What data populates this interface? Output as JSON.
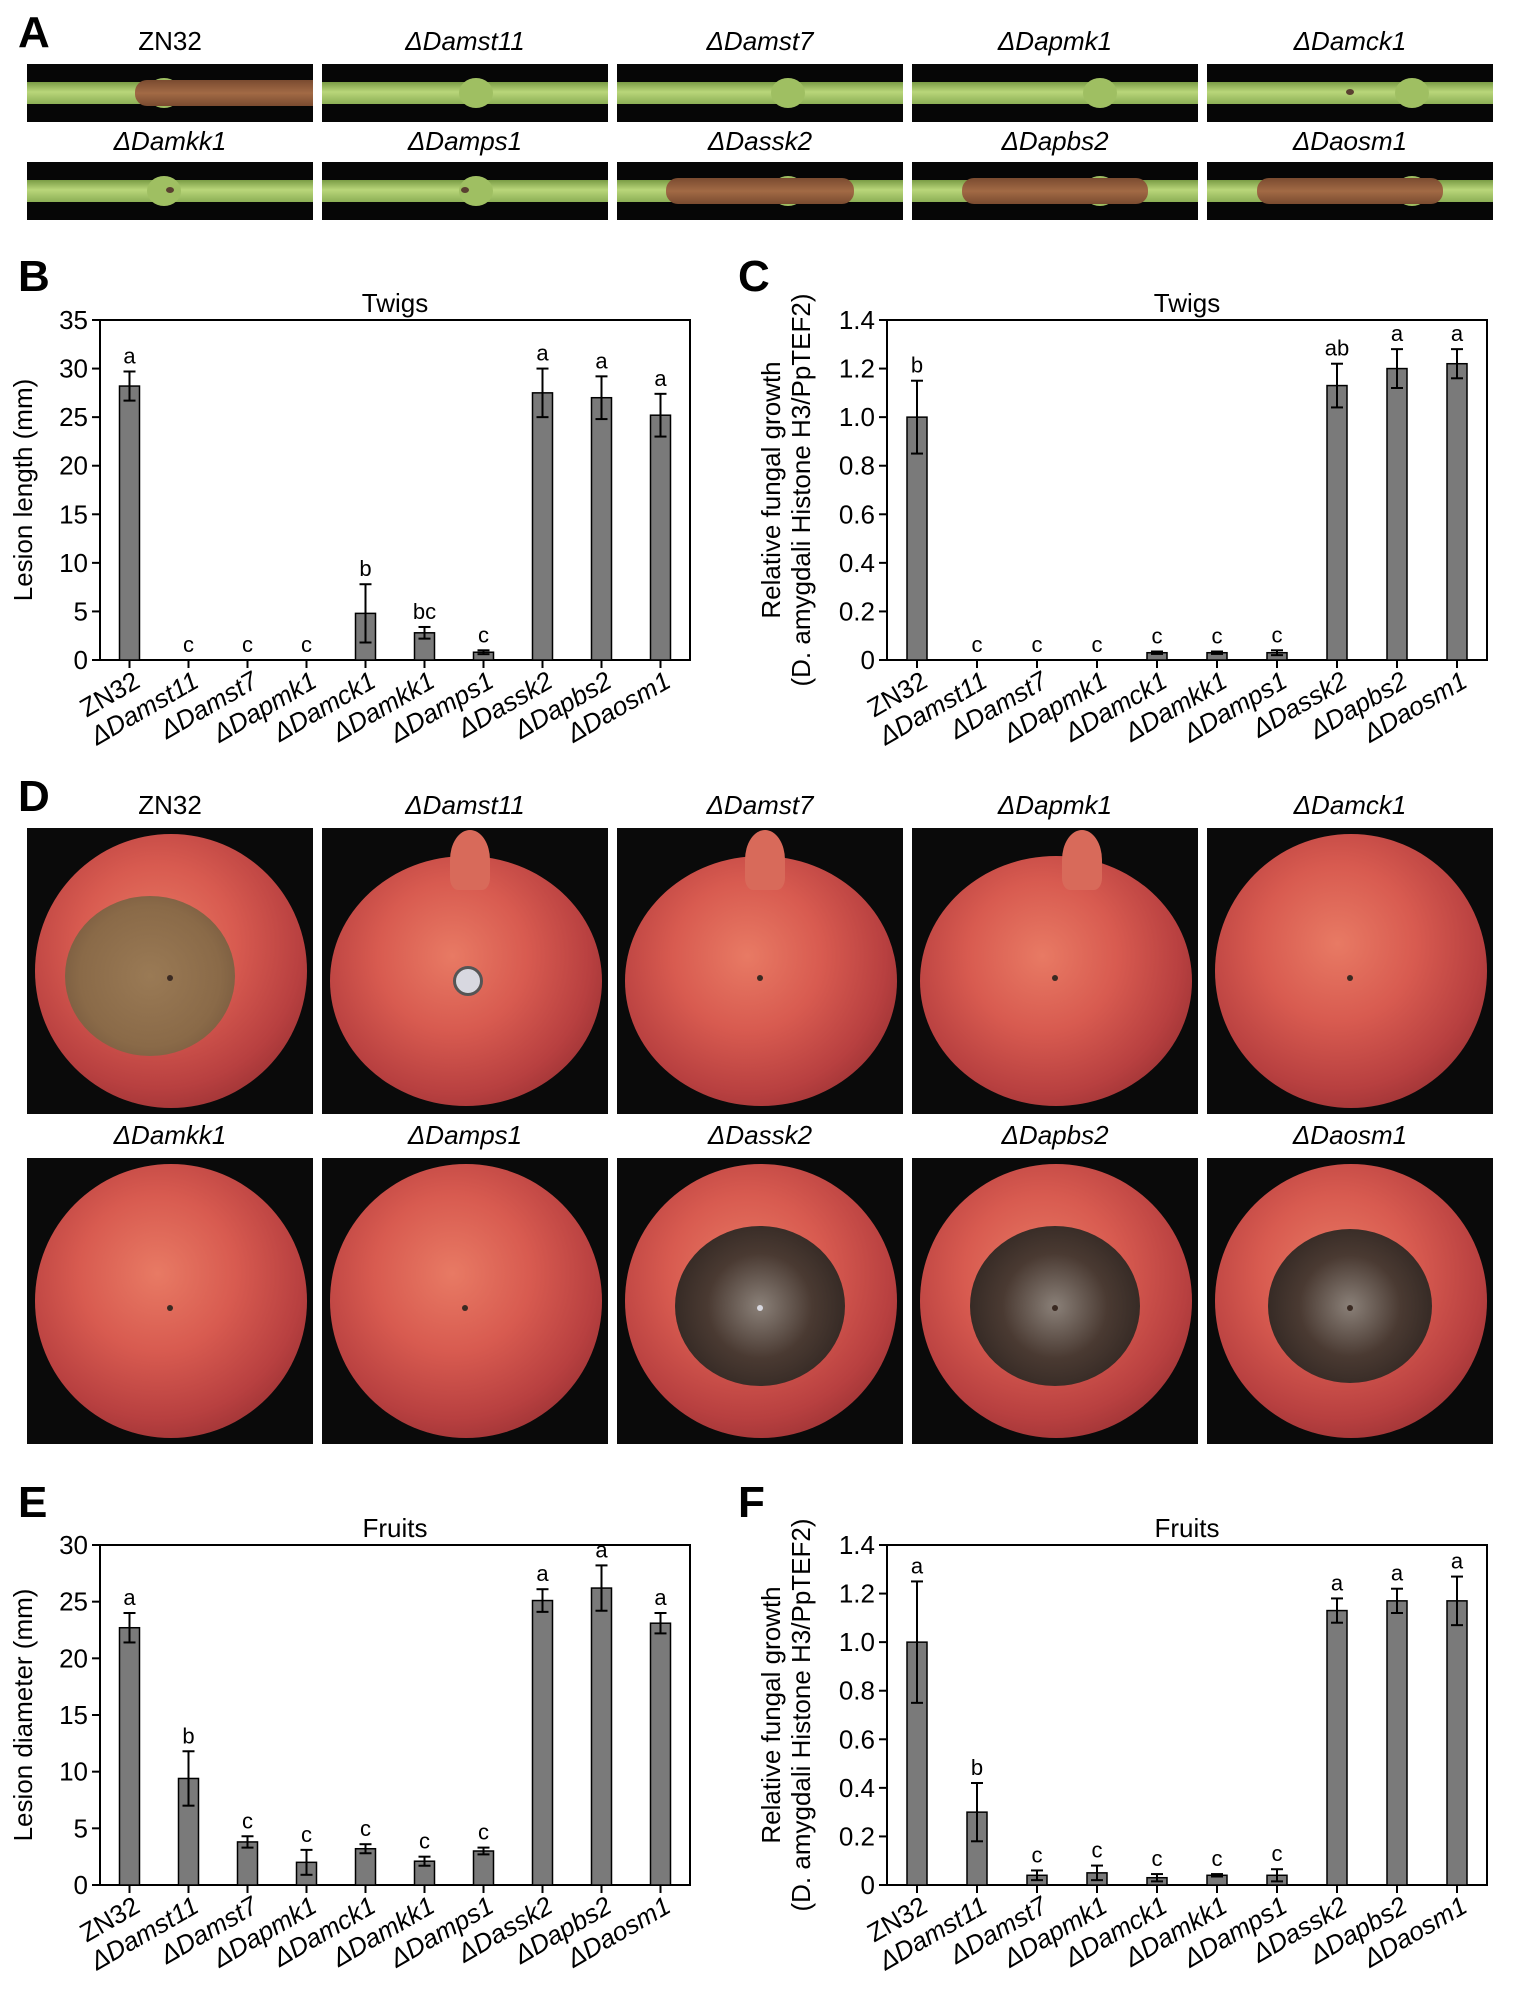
{
  "panels": {
    "A": "A",
    "B": "B",
    "C": "C",
    "D": "D",
    "E": "E",
    "F": "F"
  },
  "strains": [
    "ZN32",
    "ΔDamst11",
    "ΔDamst7",
    "ΔDapmk1",
    "ΔDamck1",
    "ΔDamkk1",
    "ΔDamps1",
    "ΔDassk2",
    "ΔDapbs2",
    "ΔDaosm1"
  ],
  "twig_photos": {
    "lesion_strength": [
      1.0,
      0.0,
      0.0,
      0.0,
      0.15,
      0.1,
      0.05,
      0.95,
      0.9,
      0.9
    ]
  },
  "fruit_photos": {
    "lesion_strength": [
      1.0,
      0.25,
      0.1,
      0.05,
      0.1,
      0.08,
      0.1,
      1.0,
      1.0,
      0.85
    ]
  },
  "colors": {
    "bar_fill": "#7a7a7a",
    "axis": "#000000",
    "twig_lesion": "#8a5535",
    "fruit_lesion": "#4a3a30"
  },
  "chart_data": [
    {
      "id": "B",
      "type": "bar",
      "title": "Twigs",
      "ylabel": "Lesion length (mm)",
      "ylabel2": "",
      "categories": [
        "ZN32",
        "ΔDamst11",
        "ΔDamst7",
        "ΔDapmk1",
        "ΔDamck1",
        "ΔDamkk1",
        "ΔDamps1",
        "ΔDassk2",
        "ΔDapbs2",
        "ΔDaosm1"
      ],
      "values": [
        28.2,
        0,
        0,
        0,
        4.8,
        2.8,
        0.8,
        27.5,
        27.0,
        25.2
      ],
      "errors": [
        1.5,
        0,
        0,
        0,
        3.0,
        0.6,
        0.2,
        2.5,
        2.2,
        2.2
      ],
      "letters": [
        "a",
        "c",
        "c",
        "c",
        "b",
        "bc",
        "c",
        "a",
        "a",
        "a"
      ],
      "ylim": [
        0,
        35
      ],
      "yticks": [
        "0",
        "5",
        "10",
        "15",
        "20",
        "25",
        "30",
        "35"
      ],
      "ytick_values": [
        0,
        5,
        10,
        15,
        20,
        25,
        30,
        35
      ]
    },
    {
      "id": "C",
      "type": "bar",
      "title": "Twigs",
      "ylabel": "Relative fungal growth",
      "ylabel2": "(D. amygdali Histone H3/PpTEF2)",
      "categories": [
        "ZN32",
        "ΔDamst11",
        "ΔDamst7",
        "ΔDapmk1",
        "ΔDamck1",
        "ΔDamkk1",
        "ΔDamps1",
        "ΔDassk2",
        "ΔDapbs2",
        "ΔDaosm1"
      ],
      "values": [
        1.0,
        0,
        0,
        0,
        0.03,
        0.03,
        0.03,
        1.13,
        1.2,
        1.22
      ],
      "errors": [
        0.15,
        0,
        0,
        0,
        0.005,
        0.005,
        0.01,
        0.09,
        0.08,
        0.06
      ],
      "letters": [
        "b",
        "c",
        "c",
        "c",
        "c",
        "c",
        "c",
        "ab",
        "a",
        "a"
      ],
      "ylim": [
        0,
        1.4
      ],
      "yticks": [
        "0",
        "0.2",
        "0.4",
        "0.6",
        "0.8",
        "1.0",
        "1.2",
        "1.4"
      ],
      "ytick_values": [
        0,
        0.2,
        0.4,
        0.6,
        0.8,
        1.0,
        1.2,
        1.4
      ]
    },
    {
      "id": "E",
      "type": "bar",
      "title": "Fruits",
      "ylabel": "Lesion diameter (mm)",
      "ylabel2": "",
      "categories": [
        "ZN32",
        "ΔDamst11",
        "ΔDamst7",
        "ΔDapmk1",
        "ΔDamck1",
        "ΔDamkk1",
        "ΔDamps1",
        "ΔDassk2",
        "ΔDapbs2",
        "ΔDaosm1"
      ],
      "values": [
        22.7,
        9.4,
        3.8,
        2.0,
        3.2,
        2.1,
        3.0,
        25.1,
        26.2,
        23.1
      ],
      "errors": [
        1.3,
        2.4,
        0.5,
        1.1,
        0.4,
        0.4,
        0.3,
        1.0,
        2.0,
        0.9
      ],
      "letters": [
        "a",
        "b",
        "c",
        "c",
        "c",
        "c",
        "c",
        "a",
        "a",
        "a"
      ],
      "ylim": [
        0,
        30
      ],
      "yticks": [
        "0",
        "5",
        "10",
        "15",
        "20",
        "25",
        "30"
      ],
      "ytick_values": [
        0,
        5,
        10,
        15,
        20,
        25,
        30
      ]
    },
    {
      "id": "F",
      "type": "bar",
      "title": "Fruits",
      "ylabel": "Relative fungal growth",
      "ylabel2": "(D. amygdali Histone H3/PpTEF2)",
      "categories": [
        "ZN32",
        "ΔDamst11",
        "ΔDamst7",
        "ΔDapmk1",
        "ΔDamck1",
        "ΔDamkk1",
        "ΔDamps1",
        "ΔDassk2",
        "ΔDapbs2",
        "ΔDaosm1"
      ],
      "values": [
        1.0,
        0.3,
        0.04,
        0.05,
        0.03,
        0.04,
        0.04,
        1.13,
        1.17,
        1.17
      ],
      "errors": [
        0.25,
        0.12,
        0.02,
        0.03,
        0.015,
        0.005,
        0.025,
        0.05,
        0.05,
        0.1
      ],
      "letters": [
        "a",
        "b",
        "c",
        "c",
        "c",
        "c",
        "c",
        "a",
        "a",
        "a"
      ],
      "ylim": [
        0,
        1.4
      ],
      "yticks": [
        "0",
        "0.2",
        "0.4",
        "0.6",
        "0.8",
        "1.0",
        "1.2",
        "1.4"
      ],
      "ytick_values": [
        0,
        0.2,
        0.4,
        0.6,
        0.8,
        1.0,
        1.2,
        1.4
      ]
    }
  ]
}
